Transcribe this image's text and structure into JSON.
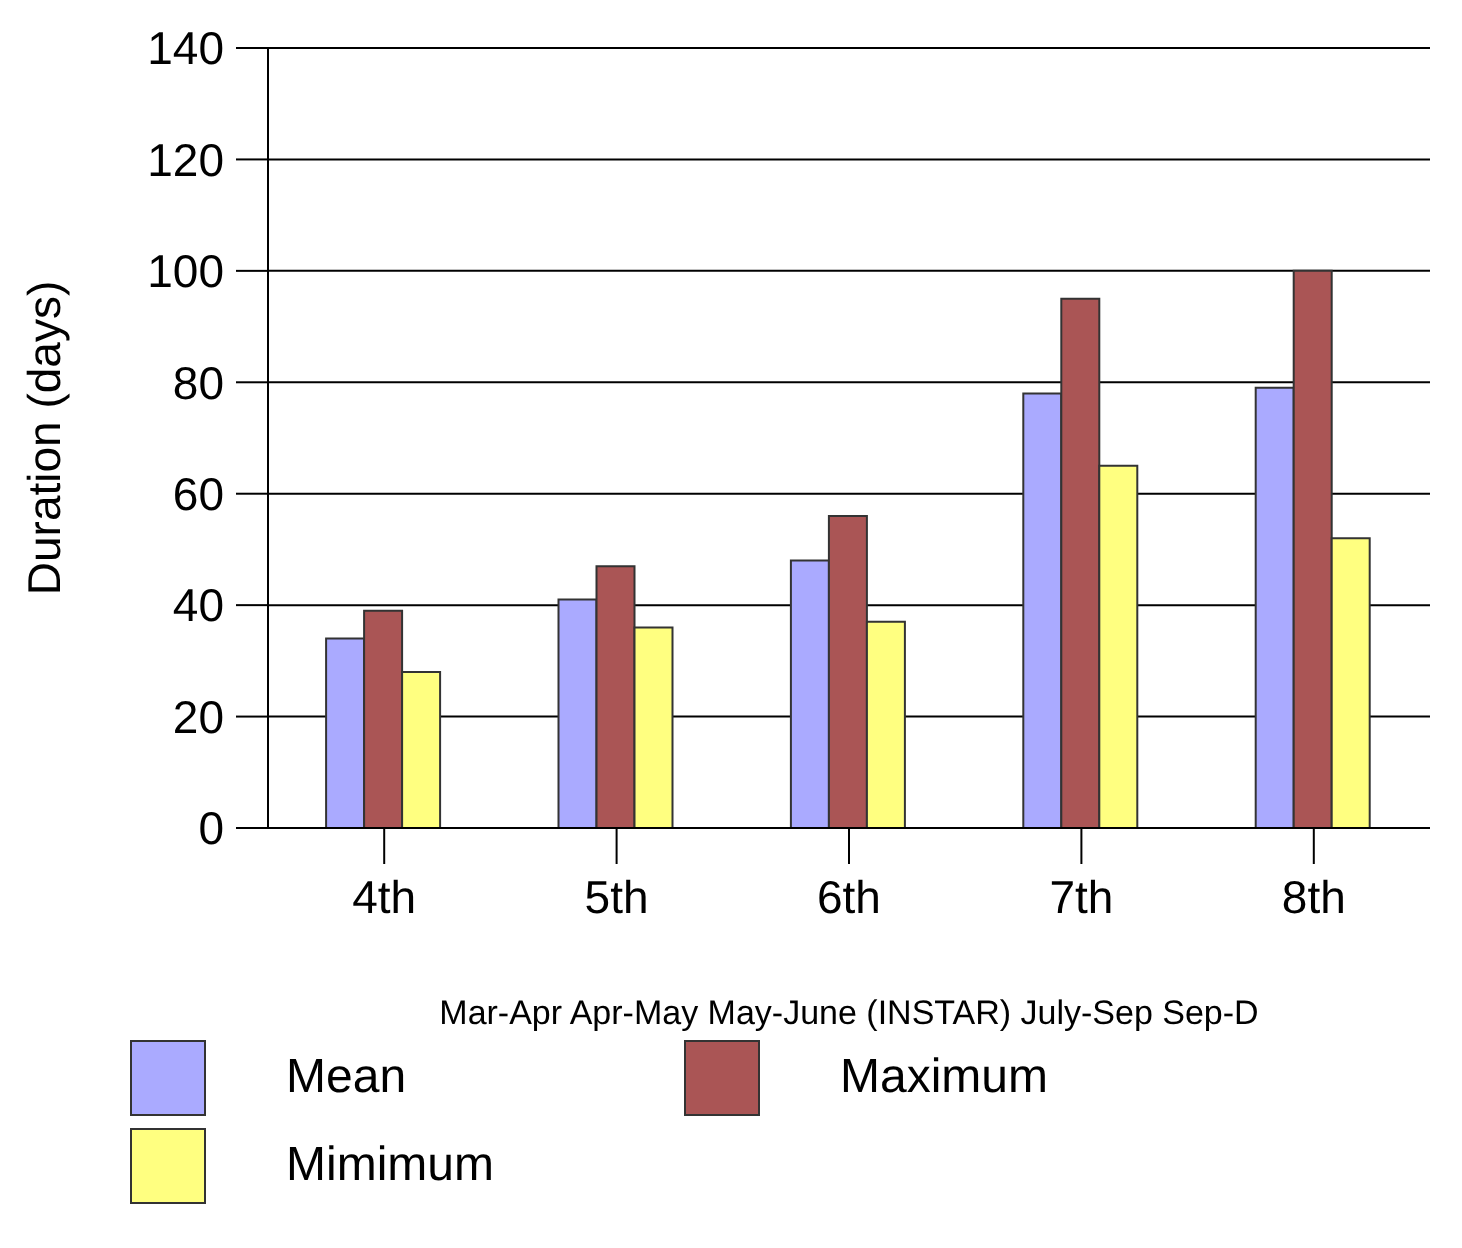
{
  "chart_data": {
    "type": "bar",
    "categories": [
      "4th",
      "5th",
      "6th",
      "7th",
      "8th"
    ],
    "xlabel": "Mar-Apr Apr-May May-June (INSTAR) July-Sep Sep-D",
    "ylabel": "Duration (days)",
    "series": [
      {
        "name": "Mean",
        "color": "#aaaaff",
        "values": [
          34,
          41,
          48,
          78,
          79
        ]
      },
      {
        "name": "Maximum",
        "color": "#aa5555",
        "values": [
          39,
          47,
          56,
          95,
          100
        ]
      },
      {
        "name": "Mimimum",
        "color": "#ffff80",
        "values": [
          28,
          36,
          37,
          65,
          52
        ]
      }
    ],
    "ylim": [
      0,
      140
    ],
    "yticks": [
      0,
      20,
      40,
      60,
      80,
      100,
      120,
      140
    ],
    "grid": "y",
    "legend": "bottom"
  }
}
